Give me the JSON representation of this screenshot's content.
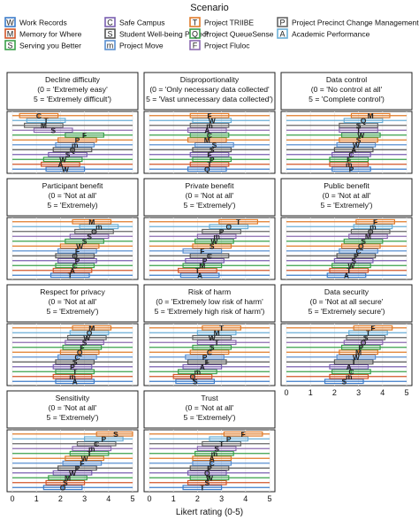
{
  "legend": {
    "title": "Scenario",
    "items": [
      {
        "letter": "W",
        "name": "Work Records",
        "color": "#3d7cc9"
      },
      {
        "letter": "C",
        "name": "Safe Campus",
        "color": "#7a5fb0"
      },
      {
        "letter": "T",
        "name": "Project TRIIBE",
        "color": "#e07b2a"
      },
      {
        "letter": "P",
        "name": "Project Precinct Change Management",
        "color": "#666666"
      },
      {
        "letter": "M",
        "name": "Memory for Where",
        "color": "#d2562a"
      },
      {
        "letter": "S",
        "name": "Student Well-being Project",
        "color": "#555555"
      },
      {
        "letter": "Q",
        "name": "Project QueueSense",
        "color": "#3aa04a"
      },
      {
        "letter": "A",
        "name": "Academic Performance",
        "color": "#6aaed6"
      },
      {
        "letter": "S",
        "name": "Serving you Better",
        "color": "#3aa04a"
      },
      {
        "letter": "m",
        "name": "Project Move",
        "color": "#5a8fd0"
      },
      {
        "letter": "F",
        "name": "Project Fluloc",
        "color": "#8c6bb1"
      }
    ]
  },
  "chart_data": [
    {
      "type": "box",
      "title_lines": [
        "Decline difficulty",
        "(0 = 'Extremely easy'",
        "5 = 'Extremely difficult')"
      ],
      "xlim": [
        0,
        5
      ],
      "rows": [
        [
          2.2,
          "W"
        ],
        [
          2.0,
          "A"
        ],
        [
          2.1,
          "W"
        ],
        [
          2.3,
          "S"
        ],
        [
          2.5,
          "Q"
        ],
        [
          2.6,
          "m"
        ],
        [
          2.7,
          "P"
        ],
        [
          3.0,
          "F"
        ],
        [
          1.7,
          "S"
        ],
        [
          1.3,
          "M"
        ],
        [
          1.4,
          "T"
        ],
        [
          1.1,
          "C"
        ]
      ]
    },
    {
      "type": "box",
      "title_lines": [
        "Disproportionality",
        "(0 = 'Only necessary data collected'",
        "5 = 'Vast unnecessary data collected')"
      ],
      "xlim": [
        0,
        5
      ],
      "rows": [
        [
          2.4,
          "Q"
        ],
        [
          2.5,
          "T"
        ],
        [
          2.6,
          "P"
        ],
        [
          2.5,
          "F"
        ],
        [
          2.6,
          "S"
        ],
        [
          2.7,
          "S"
        ],
        [
          2.4,
          "M"
        ],
        [
          2.5,
          "C"
        ],
        [
          2.4,
          "A"
        ],
        [
          2.5,
          "m"
        ],
        [
          2.6,
          "W"
        ],
        [
          2.5,
          "F"
        ]
      ]
    },
    {
      "type": "box",
      "title_lines": [
        "Data control",
        "(0 = 'No control at all'",
        "5 = 'Complete control')"
      ],
      "xlim": [
        0,
        5
      ],
      "rows": [
        [
          2.7,
          "P"
        ],
        [
          2.6,
          "m"
        ],
        [
          2.6,
          "F"
        ],
        [
          2.7,
          "C"
        ],
        [
          2.8,
          "A"
        ],
        [
          2.9,
          "W"
        ],
        [
          3.0,
          "S"
        ],
        [
          3.1,
          "W"
        ],
        [
          3.0,
          "T"
        ],
        [
          3.0,
          "S"
        ],
        [
          3.2,
          "Q"
        ],
        [
          3.5,
          "M"
        ]
      ]
    },
    {
      "type": "box",
      "title_lines": [
        "Participant benefit",
        "(0 = 'Not at all'",
        "5 = 'Extremely)"
      ],
      "xlim": [
        0,
        5
      ],
      "rows": [
        [
          2.4,
          "T"
        ],
        [
          2.5,
          "A"
        ],
        [
          2.6,
          "C"
        ],
        [
          2.7,
          "P"
        ],
        [
          2.6,
          "Q"
        ],
        [
          2.7,
          "F"
        ],
        [
          2.8,
          "W"
        ],
        [
          3.0,
          "S"
        ],
        [
          3.2,
          "S"
        ],
        [
          3.4,
          "O"
        ],
        [
          3.6,
          "m"
        ],
        [
          3.3,
          "M"
        ]
      ]
    },
    {
      "type": "box",
      "title_lines": [
        "Private benefit",
        "(0 = 'Not at all'",
        "5 = 'Extremely')"
      ],
      "xlim": [
        0,
        5
      ],
      "rows": [
        [
          2.1,
          "A"
        ],
        [
          2.0,
          "T"
        ],
        [
          2.2,
          "M"
        ],
        [
          2.3,
          "P"
        ],
        [
          2.5,
          "C"
        ],
        [
          2.2,
          "F"
        ],
        [
          2.6,
          "S"
        ],
        [
          2.7,
          "W"
        ],
        [
          2.8,
          "m"
        ],
        [
          3.0,
          "P"
        ],
        [
          3.3,
          "O"
        ],
        [
          3.7,
          "T"
        ]
      ]
    },
    {
      "type": "box",
      "title_lines": [
        "Public benefit",
        "(0 = 'Not at all'",
        "5 = 'Extremely')"
      ],
      "xlim": [
        0,
        5
      ],
      "rows": [
        [
          2.5,
          "A"
        ],
        [
          2.6,
          "T"
        ],
        [
          2.7,
          "W"
        ],
        [
          2.8,
          "S"
        ],
        [
          2.9,
          "P"
        ],
        [
          3.0,
          "C"
        ],
        [
          3.1,
          "Q"
        ],
        [
          3.2,
          "S"
        ],
        [
          3.4,
          "M"
        ],
        [
          3.5,
          "O"
        ],
        [
          3.6,
          "m"
        ],
        [
          3.7,
          "F"
        ]
      ]
    },
    {
      "type": "box",
      "title_lines": [
        "Respect for privacy",
        "(0 = 'Not at all'",
        "5 = 'Extremely')"
      ],
      "xlim": [
        0,
        5
      ],
      "rows": [
        [
          2.6,
          "A"
        ],
        [
          2.5,
          "m"
        ],
        [
          2.6,
          "T"
        ],
        [
          2.5,
          "P"
        ],
        [
          2.6,
          "S"
        ],
        [
          2.7,
          "C"
        ],
        [
          2.8,
          "Q"
        ],
        [
          2.9,
          "F"
        ],
        [
          3.0,
          "S"
        ],
        [
          3.1,
          "W"
        ],
        [
          3.2,
          "O"
        ],
        [
          3.3,
          "M"
        ]
      ]
    },
    {
      "type": "box",
      "title_lines": [
        "Risk of harm",
        "(0 = 'Extremely low risk of harm'",
        "5 = 'Extremely high risk of harm')"
      ],
      "xlim": [
        0,
        5
      ],
      "rows": [
        [
          1.9,
          "S"
        ],
        [
          1.8,
          "Q"
        ],
        [
          2.0,
          "m"
        ],
        [
          2.2,
          "A"
        ],
        [
          2.4,
          "F"
        ],
        [
          2.3,
          "P"
        ],
        [
          2.5,
          "C"
        ],
        [
          2.6,
          "S"
        ],
        [
          2.8,
          "T"
        ],
        [
          2.6,
          "W"
        ],
        [
          2.8,
          "M"
        ],
        [
          3.0,
          "T"
        ]
      ]
    },
    {
      "type": "box",
      "title_lines": [
        "Data security",
        "(0 = 'Not at all secure'",
        "5 = 'Extremely secure')"
      ],
      "xlim": [
        0,
        5
      ],
      "rows": [
        [
          2.4,
          "S"
        ],
        [
          2.6,
          "m"
        ],
        [
          2.7,
          "C"
        ],
        [
          2.6,
          "A"
        ],
        [
          2.8,
          "T"
        ],
        [
          2.9,
          "W"
        ],
        [
          3.0,
          "M"
        ],
        [
          3.1,
          "P"
        ],
        [
          3.2,
          "O"
        ],
        [
          3.3,
          "S"
        ],
        [
          3.4,
          "T"
        ],
        [
          3.6,
          "F"
        ]
      ]
    },
    {
      "type": "box",
      "title_lines": [
        "Sensitivity",
        "(0 = 'Not at all'",
        "5 = 'Extremely')"
      ],
      "xlim": [
        0,
        5
      ],
      "rows": [
        [
          2.1,
          "O"
        ],
        [
          2.2,
          "S"
        ],
        [
          2.3,
          "M"
        ],
        [
          2.5,
          "W"
        ],
        [
          2.7,
          "P"
        ],
        [
          2.9,
          "F"
        ],
        [
          3.0,
          "W"
        ],
        [
          3.2,
          "T"
        ],
        [
          3.3,
          "m"
        ],
        [
          3.5,
          "C"
        ],
        [
          3.8,
          "P"
        ],
        [
          4.3,
          "S"
        ]
      ]
    },
    {
      "type": "box",
      "title_lines": [
        "Trust",
        "(0 = 'Not at all'",
        "5 = 'Extremely')"
      ],
      "xlim": [
        0,
        5
      ],
      "rows": [
        [
          2.2,
          "T"
        ],
        [
          2.4,
          "S"
        ],
        [
          2.5,
          "W"
        ],
        [
          2.4,
          "Q"
        ],
        [
          2.5,
          "P"
        ],
        [
          2.6,
          "C"
        ],
        [
          2.6,
          "A"
        ],
        [
          2.7,
          "m"
        ],
        [
          2.8,
          "S"
        ],
        [
          3.0,
          "T"
        ],
        [
          3.3,
          "P"
        ],
        [
          3.9,
          "F"
        ]
      ]
    }
  ],
  "xaxis": {
    "label": "Likert rating (0-5)",
    "ticks": [
      "0",
      "1",
      "2",
      "3",
      "4",
      "5"
    ]
  }
}
